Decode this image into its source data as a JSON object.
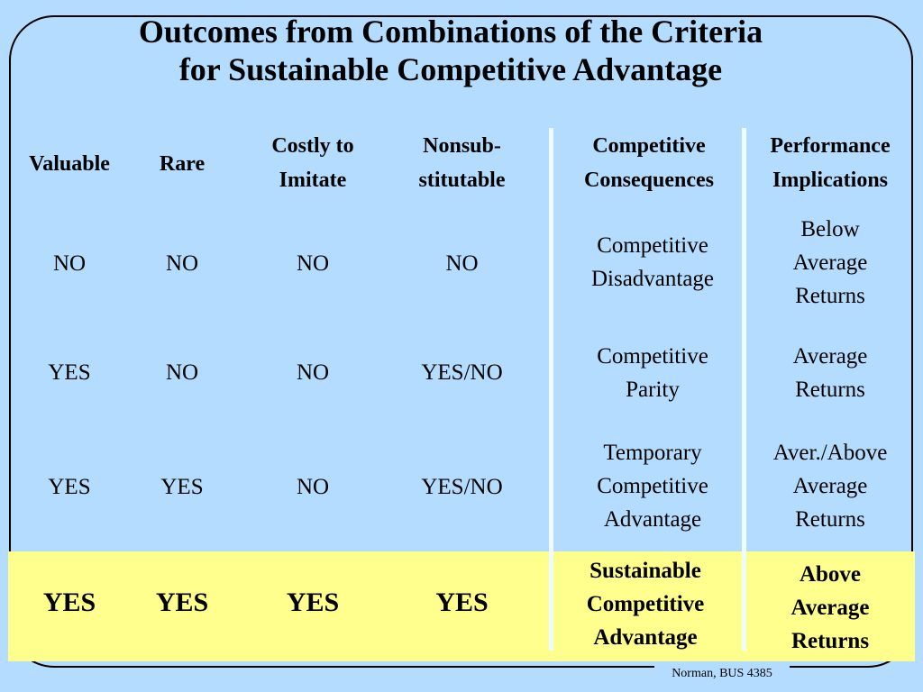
{
  "title": {
    "line1": "Outcomes from Combinations of the Criteria",
    "line2": "for Sustainable Competitive Advantage"
  },
  "headers": {
    "valuable": "Valuable",
    "rare": "Rare",
    "costly_l1": "Costly to",
    "costly_l2": "Imitate",
    "nonsub_l1": "Nonsub-",
    "nonsub_l2": "stitutable",
    "consequences_l1": "Competitive",
    "consequences_l2": "Consequences",
    "performance_l1": "Performance",
    "performance_l2": "Implications"
  },
  "rows": [
    {
      "valuable": "NO",
      "rare": "NO",
      "costly": "NO",
      "nonsub": "NO",
      "consequence": [
        "Competitive",
        "Disadvantage"
      ],
      "performance": [
        "Below",
        "Average",
        "Returns"
      ]
    },
    {
      "valuable": "YES",
      "rare": "NO",
      "costly": "NO",
      "nonsub": "YES/NO",
      "consequence": [
        "Competitive",
        "Parity"
      ],
      "performance": [
        "Average",
        "Returns"
      ]
    },
    {
      "valuable": "YES",
      "rare": "YES",
      "costly": "NO",
      "nonsub": "YES/NO",
      "consequence": [
        "Temporary",
        "Competitive",
        "Advantage"
      ],
      "performance": [
        "Aver./Above",
        "Average",
        "Returns"
      ]
    },
    {
      "valuable": "YES",
      "rare": "YES",
      "costly": "YES",
      "nonsub": "YES",
      "consequence": [
        "Sustainable",
        "Competitive",
        "Advantage"
      ],
      "performance": [
        "Above",
        "Average",
        "Returns"
      ]
    }
  ],
  "footer": "Norman, BUS 4385",
  "colors": {
    "background": "#b3dcfe",
    "highlight": "#ffff8e",
    "divider": "#eefbff"
  }
}
